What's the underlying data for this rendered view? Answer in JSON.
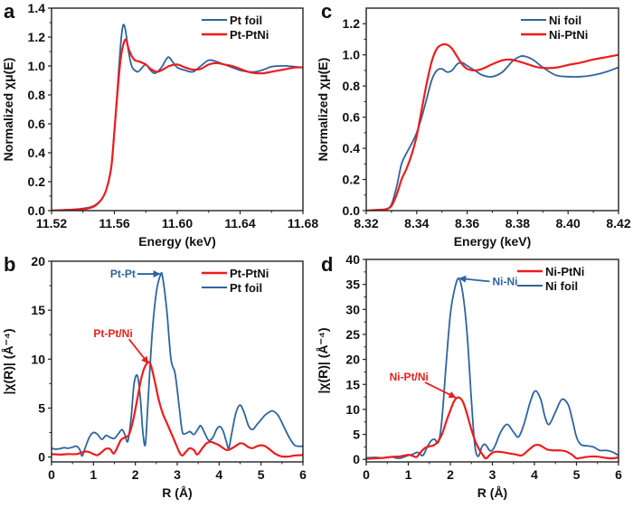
{
  "colors": {
    "blue": "#2e64a0",
    "red": "#ee1c1c",
    "axis": "#222222"
  },
  "chart_data": [
    {
      "id": "a",
      "type": "line",
      "panel_letter": "a",
      "xlabel": "Energy (keV)",
      "ylabel": "Normalized χμ(E)",
      "xlim": [
        11.52,
        11.68
      ],
      "ylim": [
        0.0,
        1.4
      ],
      "xticks": [
        11.52,
        11.56,
        11.6,
        11.64,
        11.68
      ],
      "xtick_labels": [
        "11.52",
        "11.56",
        "11.60",
        "11.64",
        "11.68"
      ],
      "yticks": [
        0.0,
        0.2,
        0.4,
        0.6,
        0.8,
        1.0,
        1.2,
        1.4
      ],
      "ytick_labels": [
        "0.0",
        "0.2",
        "0.4",
        "0.6",
        "0.8",
        "1.0",
        "1.2",
        "1.4"
      ],
      "legend_position": "top-right",
      "legend": [
        {
          "label": "Pt foil",
          "color": "blue"
        },
        {
          "label": "Pt-PtNi",
          "color": "red"
        }
      ],
      "annotations": [],
      "series": [
        {
          "name": "Pt foil",
          "color": "blue",
          "x": [
            11.52,
            11.53,
            11.54,
            11.545,
            11.548,
            11.552,
            11.555,
            11.558,
            11.56,
            11.562,
            11.564,
            11.5655,
            11.567,
            11.569,
            11.571,
            11.573,
            11.575,
            11.577,
            11.58,
            11.583,
            11.586,
            11.59,
            11.594,
            11.597,
            11.6,
            11.605,
            11.61,
            11.615,
            11.62,
            11.625,
            11.63,
            11.635,
            11.64,
            11.645,
            11.65,
            11.655,
            11.66,
            11.665,
            11.67,
            11.675,
            11.68
          ],
          "y": [
            0.0,
            0.005,
            0.015,
            0.025,
            0.04,
            0.08,
            0.15,
            0.3,
            0.55,
            0.85,
            1.15,
            1.28,
            1.25,
            1.1,
            1.0,
            0.97,
            0.96,
            0.98,
            1.01,
            0.97,
            0.95,
            0.99,
            1.06,
            1.03,
            0.99,
            0.97,
            0.96,
            1.0,
            1.04,
            1.03,
            1.01,
            0.99,
            0.97,
            0.96,
            0.96,
            0.975,
            0.995,
            1.0,
            1.0,
            0.995,
            0.99
          ]
        },
        {
          "name": "Pt-PtNi",
          "color": "red",
          "x": [
            11.52,
            11.53,
            11.54,
            11.545,
            11.548,
            11.552,
            11.555,
            11.558,
            11.56,
            11.562,
            11.564,
            11.566,
            11.5675,
            11.569,
            11.571,
            11.573,
            11.576,
            11.58,
            11.583,
            11.587,
            11.59,
            11.595,
            11.6,
            11.605,
            11.61,
            11.615,
            11.62,
            11.625,
            11.63,
            11.635,
            11.64,
            11.645,
            11.65,
            11.655,
            11.66,
            11.665,
            11.67,
            11.675,
            11.68
          ],
          "y": [
            0.0,
            0.005,
            0.01,
            0.02,
            0.035,
            0.08,
            0.15,
            0.3,
            0.55,
            0.82,
            1.05,
            1.16,
            1.18,
            1.12,
            1.07,
            1.04,
            1.03,
            1.01,
            0.98,
            0.96,
            0.97,
            1.0,
            1.01,
            0.99,
            0.975,
            0.98,
            1.01,
            1.02,
            1.01,
            1.0,
            0.98,
            0.96,
            0.95,
            0.95,
            0.96,
            0.97,
            0.98,
            0.99,
            0.99
          ]
        }
      ]
    },
    {
      "id": "c",
      "type": "line",
      "panel_letter": "c",
      "xlabel": "Energy (keV)",
      "ylabel": "Normalized χμ(E)",
      "xlim": [
        8.32,
        8.42
      ],
      "ylim": [
        0.0,
        1.3
      ],
      "xticks": [
        8.32,
        8.34,
        8.36,
        8.38,
        8.4,
        8.42
      ],
      "xtick_labels": [
        "8.32",
        "8.34",
        "8.36",
        "8.38",
        "8.40",
        "8.42"
      ],
      "yticks": [
        0.0,
        0.2,
        0.4,
        0.6,
        0.8,
        1.0,
        1.2
      ],
      "ytick_labels": [
        "0.0",
        "0.2",
        "0.4",
        "0.6",
        "0.8",
        "1.0",
        "1.2"
      ],
      "legend_position": "top-right",
      "legend": [
        {
          "label": "Ni foil",
          "color": "blue"
        },
        {
          "label": "Ni-PtNi",
          "color": "red"
        }
      ],
      "annotations": [],
      "series": [
        {
          "name": "Ni foil",
          "color": "blue",
          "x": [
            8.32,
            8.325,
            8.328,
            8.33,
            8.332,
            8.334,
            8.336,
            8.338,
            8.34,
            8.342,
            8.344,
            8.346,
            8.348,
            8.35,
            8.352,
            8.354,
            8.356,
            8.358,
            8.36,
            8.363,
            8.366,
            8.37,
            8.374,
            8.378,
            8.381,
            8.383,
            8.386,
            8.39,
            8.395,
            8.4,
            8.405,
            8.41,
            8.415,
            8.42
          ],
          "y": [
            0.0,
            0.005,
            0.01,
            0.04,
            0.15,
            0.3,
            0.37,
            0.43,
            0.5,
            0.6,
            0.72,
            0.84,
            0.9,
            0.91,
            0.89,
            0.9,
            0.94,
            0.95,
            0.93,
            0.9,
            0.87,
            0.86,
            0.89,
            0.96,
            0.99,
            0.99,
            0.97,
            0.92,
            0.87,
            0.86,
            0.86,
            0.87,
            0.89,
            0.92
          ]
        },
        {
          "name": "Ni-PtNi",
          "color": "red",
          "x": [
            8.32,
            8.325,
            8.328,
            8.33,
            8.332,
            8.334,
            8.336,
            8.338,
            8.34,
            8.342,
            8.344,
            8.346,
            8.348,
            8.35,
            8.352,
            8.354,
            8.356,
            8.358,
            8.36,
            8.363,
            8.366,
            8.37,
            8.374,
            8.377,
            8.38,
            8.384,
            8.388,
            8.392,
            8.396,
            8.4,
            8.405,
            8.41,
            8.415,
            8.42
          ],
          "y": [
            0.0,
            0.005,
            0.01,
            0.03,
            0.1,
            0.2,
            0.27,
            0.36,
            0.48,
            0.65,
            0.82,
            0.96,
            1.04,
            1.065,
            1.065,
            1.04,
            0.99,
            0.94,
            0.91,
            0.9,
            0.91,
            0.94,
            0.965,
            0.97,
            0.96,
            0.94,
            0.92,
            0.915,
            0.92,
            0.935,
            0.95,
            0.97,
            0.985,
            1.0
          ]
        }
      ]
    },
    {
      "id": "b",
      "type": "line",
      "panel_letter": "b",
      "xlabel": "R (Å)",
      "ylabel": "|χ(R)| (Å⁻⁴)",
      "xlim": [
        0,
        6
      ],
      "ylim": [
        -0.5,
        20
      ],
      "xticks": [
        0,
        1,
        2,
        3,
        4,
        5,
        6
      ],
      "xtick_labels": [
        "0",
        "1",
        "2",
        "3",
        "4",
        "5",
        "6"
      ],
      "yticks": [
        0,
        5,
        10,
        15,
        20
      ],
      "ytick_labels": [
        "0",
        "5",
        "10",
        "15",
        "20"
      ],
      "legend_position": "top-right",
      "legend": [
        {
          "label": "Pt-PtNi",
          "color": "red"
        },
        {
          "label": "Pt foil",
          "color": "blue"
        }
      ],
      "annotations": [
        {
          "text": "Pt-Pt",
          "color": "blue",
          "text_at": [
            1.4,
            18.7
          ],
          "arrow_to": [
            2.58,
            18.7
          ]
        },
        {
          "text": "Pt-Pt/Ni",
          "color": "red",
          "text_at": [
            1.0,
            12.6
          ],
          "arrow_to": [
            2.3,
            9.6
          ]
        }
      ],
      "series": [
        {
          "name": "Pt foil",
          "color": "blue",
          "x": [
            0,
            0.1,
            0.2,
            0.3,
            0.4,
            0.5,
            0.6,
            0.68,
            0.73,
            0.8,
            0.9,
            1.0,
            1.1,
            1.2,
            1.3,
            1.4,
            1.5,
            1.6,
            1.68,
            1.75,
            1.82,
            1.9,
            1.97,
            2.05,
            2.12,
            2.18,
            2.24,
            2.3,
            2.4,
            2.5,
            2.6,
            2.65,
            2.75,
            2.85,
            2.95,
            3.05,
            3.12,
            3.2,
            3.3,
            3.4,
            3.5,
            3.56,
            3.65,
            3.75,
            3.85,
            3.95,
            4.03,
            4.1,
            4.17,
            4.23,
            4.3,
            4.4,
            4.5,
            4.6,
            4.7,
            4.8,
            4.9,
            5.0,
            5.1,
            5.2,
            5.28,
            5.4,
            5.5,
            5.6,
            5.7,
            5.8,
            5.9,
            6.0
          ],
          "y": [
            0.9,
            0.8,
            0.85,
            0.95,
            0.9,
            1.0,
            1.1,
            0.7,
            0.1,
            0.9,
            2.0,
            2.5,
            2.3,
            1.8,
            2.2,
            2.0,
            1.9,
            2.4,
            2.8,
            2.3,
            1.6,
            4.0,
            7.5,
            8.3,
            6.0,
            2.5,
            1.3,
            5.5,
            12.5,
            16.8,
            18.6,
            18.4,
            15.0,
            10.0,
            8.5,
            5.0,
            2.6,
            2.4,
            2.6,
            2.3,
            2.9,
            3.2,
            2.5,
            1.7,
            2.0,
            2.9,
            3.1,
            2.6,
            1.6,
            0.9,
            2.4,
            4.5,
            5.3,
            4.5,
            3.2,
            2.8,
            3.3,
            3.8,
            4.3,
            4.6,
            4.7,
            4.3,
            3.5,
            2.6,
            1.8,
            1.2,
            1.1,
            1.1
          ]
        },
        {
          "name": "Pt-PtNi",
          "color": "red",
          "x": [
            0,
            0.2,
            0.4,
            0.6,
            0.8,
            0.9,
            1.0,
            1.1,
            1.2,
            1.3,
            1.4,
            1.48,
            1.55,
            1.65,
            1.75,
            1.85,
            1.95,
            2.05,
            2.15,
            2.25,
            2.35,
            2.45,
            2.55,
            2.65,
            2.75,
            2.85,
            2.95,
            3.05,
            3.12,
            3.2,
            3.3,
            3.4,
            3.48,
            3.6,
            3.7,
            3.8,
            3.9,
            4.0,
            4.1,
            4.2,
            4.35,
            4.5,
            4.6,
            4.7,
            4.8,
            4.9,
            5.0,
            5.1,
            5.2,
            5.35,
            5.5,
            5.65,
            5.8,
            6.0
          ],
          "y": [
            0.3,
            0.25,
            0.3,
            0.3,
            0.55,
            0.5,
            0.3,
            0.2,
            0.5,
            0.85,
            0.8,
            0.35,
            0.8,
            1.7,
            2.0,
            2.3,
            3.8,
            6.0,
            8.2,
            9.4,
            9.6,
            8.0,
            6.0,
            4.5,
            3.5,
            2.5,
            1.5,
            0.5,
            0.15,
            0.5,
            0.9,
            0.7,
            0.25,
            0.9,
            1.4,
            1.55,
            1.4,
            1.2,
            0.9,
            0.7,
            1.0,
            1.4,
            1.3,
            1.0,
            0.9,
            1.1,
            1.2,
            1.1,
            0.8,
            0.3,
            0.05,
            0.05,
            0.15,
            0.2
          ]
        }
      ]
    },
    {
      "id": "d",
      "type": "line",
      "panel_letter": "d",
      "xlabel": "R (Å)",
      "ylabel": "|χ(R)| (Å⁻⁴)",
      "xlim": [
        0,
        6
      ],
      "ylim": [
        -0.5,
        40
      ],
      "xticks": [
        0,
        1,
        2,
        3,
        4,
        5,
        6
      ],
      "xtick_labels": [
        "0",
        "1",
        "2",
        "3",
        "4",
        "5",
        "6"
      ],
      "yticks": [
        0,
        5,
        10,
        15,
        20,
        25,
        30,
        35,
        40
      ],
      "ytick_labels": [
        "0",
        "5",
        "10",
        "15",
        "20",
        "25",
        "30",
        "35",
        "40"
      ],
      "legend_position": "top-right",
      "legend": [
        {
          "label": "Ni-PtNi",
          "color": "red"
        },
        {
          "label": "Ni foil",
          "color": "blue"
        }
      ],
      "annotations": [
        {
          "text": "Ni-Ni",
          "color": "blue",
          "text_at": [
            3.0,
            35.6
          ],
          "arrow_to": [
            2.22,
            36.2
          ]
        },
        {
          "text": "Ni-Pt/Ni",
          "color": "red",
          "text_at": [
            0.55,
            16.5
          ],
          "arrow_to": [
            2.12,
            12.4
          ]
        }
      ],
      "series": [
        {
          "name": "Ni foil",
          "color": "blue",
          "x": [
            0,
            0.2,
            0.4,
            0.6,
            0.7,
            0.8,
            0.9,
            1.0,
            1.1,
            1.2,
            1.25,
            1.35,
            1.45,
            1.55,
            1.63,
            1.72,
            1.8,
            1.9,
            2.0,
            2.1,
            2.2,
            2.3,
            2.4,
            2.5,
            2.58,
            2.66,
            2.75,
            2.83,
            2.95,
            3.05,
            3.2,
            3.35,
            3.5,
            3.62,
            3.75,
            3.9,
            4.02,
            4.15,
            4.25,
            4.35,
            4.5,
            4.65,
            4.8,
            4.9,
            5.0,
            5.1,
            5.25,
            5.4,
            5.55,
            5.7,
            5.85,
            6.0
          ],
          "y": [
            0.3,
            0.4,
            0.3,
            0.5,
            0.3,
            0.2,
            0.5,
            0.8,
            1.0,
            1.4,
            1.3,
            0.8,
            2.5,
            3.8,
            4.0,
            3.5,
            8.0,
            19.0,
            29.0,
            34.0,
            36.2,
            33.0,
            25.0,
            12.0,
            3.0,
            0.6,
            2.5,
            3.0,
            1.7,
            2.5,
            5.5,
            7.0,
            5.5,
            4.5,
            7.0,
            11.5,
            13.7,
            12.0,
            8.5,
            7.0,
            9.5,
            12.0,
            11.0,
            8.0,
            4.5,
            3.0,
            2.7,
            2.5,
            1.8,
            1.8,
            1.5,
            0.8
          ]
        },
        {
          "name": "Ni-PtNi",
          "color": "red",
          "x": [
            0,
            0.2,
            0.4,
            0.6,
            0.8,
            1.0,
            1.1,
            1.2,
            1.3,
            1.4,
            1.5,
            1.6,
            1.7,
            1.8,
            1.9,
            2.0,
            2.1,
            2.2,
            2.3,
            2.4,
            2.5,
            2.6,
            2.7,
            2.78,
            2.85,
            2.95,
            3.05,
            3.2,
            3.4,
            3.55,
            3.7,
            3.85,
            4.0,
            4.1,
            4.2,
            4.3,
            4.45,
            4.6,
            4.75,
            4.9,
            5.0,
            5.1,
            5.25,
            5.4,
            5.55,
            5.7,
            5.85,
            6.0
          ],
          "y": [
            0.1,
            0.2,
            0.3,
            0.5,
            0.6,
            0.9,
            0.7,
            0.5,
            1.5,
            2.3,
            2.6,
            2.8,
            3.5,
            5.0,
            7.5,
            9.8,
            11.8,
            12.4,
            11.5,
            9.0,
            6.0,
            3.5,
            1.8,
            0.8,
            0.2,
            1.0,
            1.5,
            1.5,
            1.2,
            1.0,
            0.8,
            1.8,
            2.8,
            2.9,
            2.5,
            2.0,
            1.8,
            1.8,
            1.6,
            0.9,
            0.2,
            0.3,
            0.5,
            0.6,
            0.5,
            0.3,
            0.2,
            0.4
          ]
        }
      ]
    }
  ]
}
